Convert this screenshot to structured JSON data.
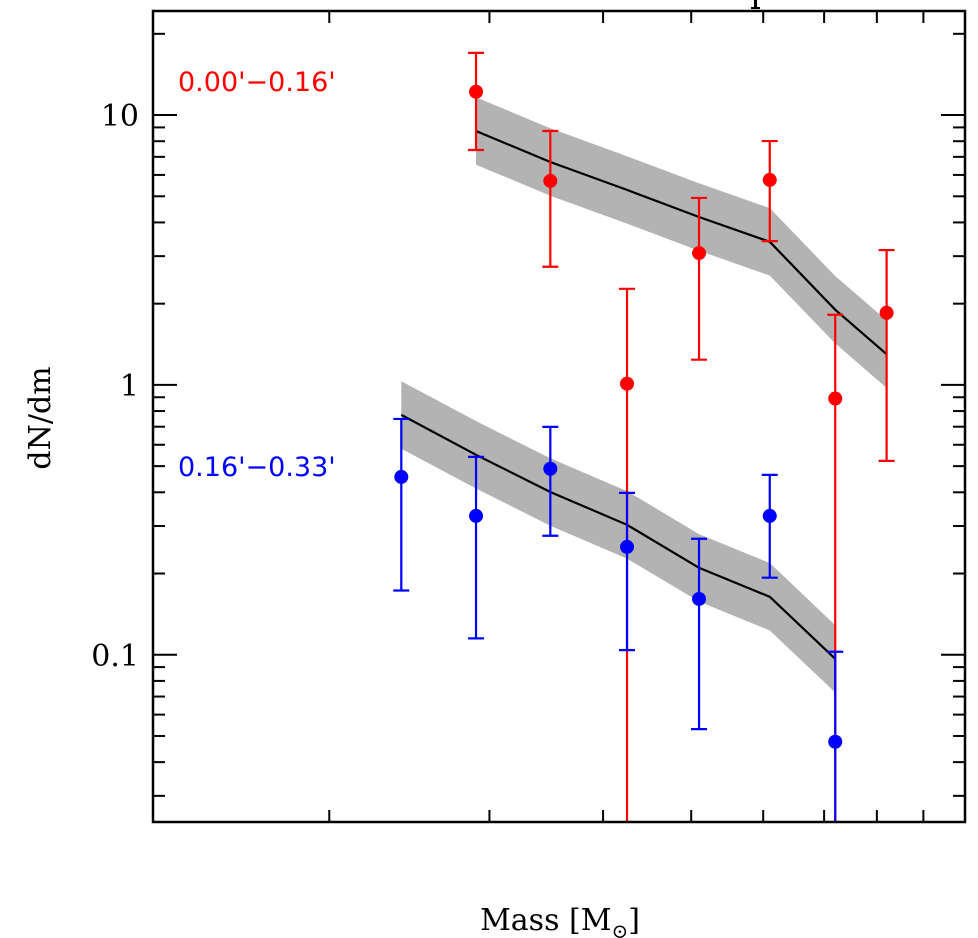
{
  "chart_data": {
    "type": "scatter",
    "title": "",
    "xlabel": "Mass [M⊙]",
    "xlabel_main": "Mass [M",
    "xlabel_sub": "⊙",
    "xlabel_close": "]",
    "ylabel": "dN/dm",
    "xscale": "log",
    "yscale": "log",
    "xlim": [
      1.28,
      10.0
    ],
    "ylim": [
      0.024,
      24.3
    ],
    "x_major_ticks": [
      2,
      3,
      4,
      5,
      6,
      7,
      8,
      9
    ],
    "x_tick_labels": [],
    "y_major_ticks": [
      0.1,
      1,
      10
    ],
    "y_tick_labels": [
      "0.1",
      "1",
      "10"
    ],
    "grid": false,
    "legend_placement": "top-left (text labels beside each series)",
    "series": [
      {
        "name": "0.00'−0.16'",
        "color": "#ff0000",
        "x": [
          2.9,
          3.5,
          4.25,
          5.1,
          6.1,
          7.2,
          8.2
        ],
        "y": [
          12.2,
          5.7,
          1.01,
          3.08,
          5.75,
          0.89,
          1.85
        ],
        "err_upper": [
          17.0,
          8.73,
          2.27,
          4.93,
          8.01,
          1.82,
          3.16
        ],
        "err_lower": [
          7.42,
          2.74,
          null,
          1.24,
          3.41,
          null,
          0.523
        ],
        "model": {
          "x": [
            2.9,
            3.5,
            4.25,
            5.1,
            6.1,
            7.2,
            8.2
          ],
          "y": [
            8.73,
            6.7,
            5.28,
            4.19,
            3.39,
            1.9,
            1.3
          ],
          "band_dex": 0.125,
          "line_color": "#000000",
          "band_color": "#b3b3b3"
        }
      },
      {
        "name": "0.16'−0.33'",
        "color": "#0000ff",
        "x": [
          2.4,
          2.9,
          3.5,
          4.25,
          5.1,
          6.1,
          7.2
        ],
        "y": [
          0.456,
          0.327,
          0.489,
          0.251,
          0.161,
          0.327,
          0.0476
        ],
        "err_upper": [
          0.748,
          0.541,
          0.699,
          0.398,
          0.269,
          0.464,
          0.1026
        ],
        "err_lower": [
          0.173,
          0.115,
          0.276,
          0.104,
          0.053,
          0.193,
          null
        ],
        "model": {
          "x": [
            2.4,
            2.9,
            3.5,
            4.25,
            5.1,
            6.1,
            7.2
          ],
          "y": [
            0.774,
            0.551,
            0.401,
            0.303,
            0.21,
            0.164,
            0.0966
          ],
          "band_dex": 0.125,
          "line_color": "#000000",
          "band_color": "#b3b3b3"
        }
      }
    ]
  }
}
